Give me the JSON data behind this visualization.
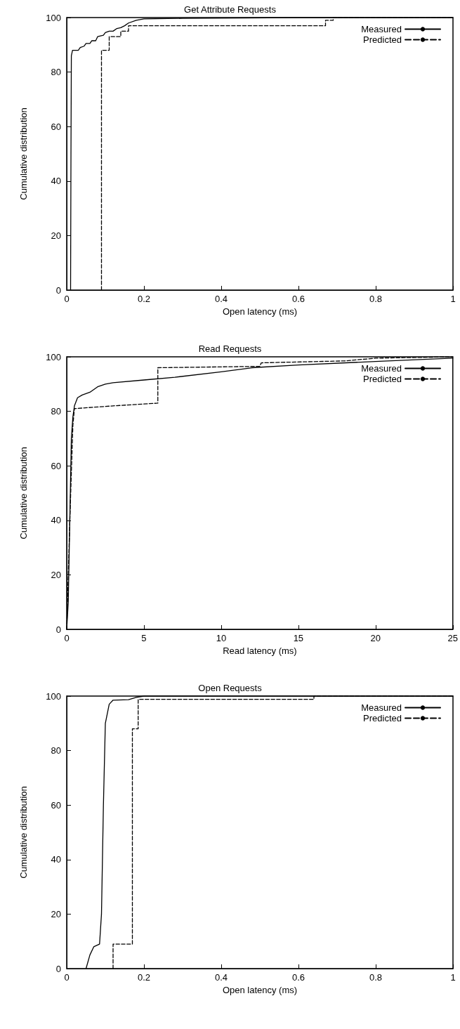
{
  "chart_data": [
    {
      "type": "line",
      "title": "Get Attribute Requests",
      "xlabel": "Open latency (ms)",
      "ylabel": "Cumulative distribution",
      "xlim": [
        0,
        1
      ],
      "xticks": [
        0,
        0.2,
        0.4,
        0.6,
        0.8,
        1
      ],
      "ylim": [
        0,
        100
      ],
      "yticks": [
        0,
        20,
        40,
        60,
        80,
        100
      ],
      "legend": "top right",
      "marker": "none",
      "grid": false,
      "series": [
        {
          "name": "Measured",
          "color": "#000000",
          "line_style": "solid",
          "x": [
            0.01,
            0.011,
            0.012,
            0.015,
            0.03,
            0.035,
            0.045,
            0.05,
            0.06,
            0.065,
            0.075,
            0.08,
            0.095,
            0.1,
            0.11,
            0.12,
            0.13,
            0.14,
            0.15,
            0.16,
            0.18,
            0.2,
            0.3,
            0.6,
            1
          ],
          "values": [
            0,
            50,
            86,
            88,
            88,
            89,
            89.5,
            90.5,
            90.5,
            91.5,
            91.5,
            93,
            93.5,
            94.5,
            95,
            95,
            96,
            96.3,
            97,
            98,
            99,
            99.5,
            99.7,
            100,
            100
          ]
        },
        {
          "name": "Predicted",
          "color": "#000000",
          "line_style": "dashed",
          "x": [
            0.09,
            0.09,
            0.11,
            0.11,
            0.14,
            0.14,
            0.16,
            0.16,
            0.67,
            0.67,
            0.69,
            0.69,
            1
          ],
          "values": [
            0,
            88,
            88,
            93,
            93,
            95,
            95,
            97,
            97,
            99,
            99,
            100,
            100
          ]
        }
      ]
    },
    {
      "type": "line",
      "title": "Read Requests",
      "xlabel": "Read latency (ms)",
      "ylabel": "Cumulative distribution",
      "xlim": [
        0,
        25
      ],
      "xticks": [
        0,
        5,
        10,
        15,
        20,
        25
      ],
      "ylim": [
        0,
        100
      ],
      "yticks": [
        0,
        20,
        40,
        60,
        80,
        100
      ],
      "legend": "top right",
      "marker": "none",
      "grid": false,
      "series": [
        {
          "name": "Measured",
          "color": "#000000",
          "line_style": "solid",
          "x": [
            0,
            0.1,
            0.2,
            0.3,
            0.4,
            0.5,
            0.7,
            1,
            1.5,
            2,
            2.5,
            3,
            5,
            7,
            10,
            12,
            15,
            20,
            25
          ],
          "values": [
            0,
            10,
            40,
            70,
            78,
            82,
            85,
            86,
            87,
            89,
            90,
            90.5,
            91.5,
            92.5,
            94.5,
            96,
            97,
            98.3,
            99.5
          ]
        },
        {
          "name": "Predicted",
          "color": "#000000",
          "line_style": "dashed",
          "x": [
            0,
            0.2,
            0.4,
            0.5,
            3,
            5.9,
            5.9,
            12.5,
            12.6,
            18,
            20,
            25
          ],
          "values": [
            0,
            40,
            75,
            81,
            82,
            83,
            96,
            96.5,
            97.8,
            98.5,
            99.5,
            100
          ]
        }
      ]
    },
    {
      "type": "line",
      "title": "Open Requests",
      "xlabel": "Open latency (ms)",
      "ylabel": "Cumulative distribution",
      "xlim": [
        0,
        1
      ],
      "xticks": [
        0,
        0.2,
        0.4,
        0.6,
        0.8,
        1
      ],
      "ylim": [
        0,
        100
      ],
      "yticks": [
        0,
        20,
        40,
        60,
        80,
        100
      ],
      "legend": "top right",
      "marker": "none",
      "grid": false,
      "series": [
        {
          "name": "Measured",
          "color": "#000000",
          "line_style": "solid",
          "x": [
            0.05,
            0.06,
            0.07,
            0.085,
            0.09,
            0.095,
            0.1,
            0.11,
            0.12,
            0.16,
            0.18,
            0.2,
            1
          ],
          "values": [
            0,
            5,
            8,
            9,
            20,
            60,
            90,
            97,
            98.5,
            98.7,
            99.5,
            100,
            100
          ]
        },
        {
          "name": "Predicted",
          "color": "#000000",
          "line_style": "dashed",
          "x": [
            0.12,
            0.12,
            0.17,
            0.17,
            0.185,
            0.185,
            0.64,
            0.64,
            1
          ],
          "values": [
            0,
            9,
            9,
            88,
            88,
            98.8,
            98.8,
            100,
            100
          ]
        }
      ]
    }
  ]
}
